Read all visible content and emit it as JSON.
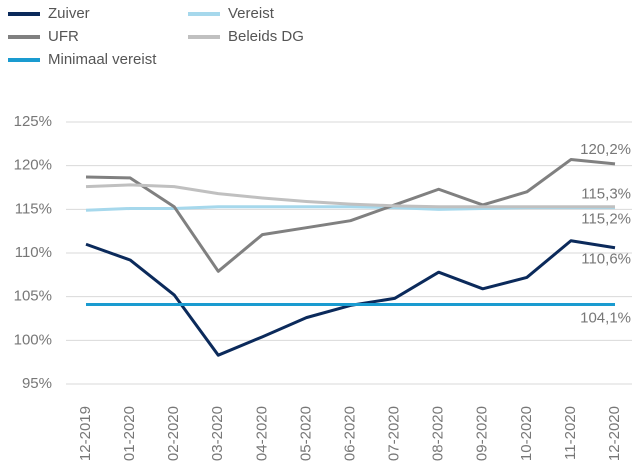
{
  "chart_data": {
    "type": "line",
    "categories": [
      "12-2019",
      "01-2020",
      "02-2020",
      "03-2020",
      "04-2020",
      "05-2020",
      "06-2020",
      "07-2020",
      "08-2020",
      "09-2020",
      "10-2020",
      "11-2020",
      "12-2020"
    ],
    "series": [
      {
        "name": "Zuiver",
        "color": "#0b2a5b",
        "values": [
          111.0,
          109.2,
          105.2,
          98.3,
          100.4,
          102.6,
          104.0,
          104.8,
          107.8,
          105.9,
          107.2,
          111.4,
          110.6
        ],
        "value_labels": [
          null,
          null,
          null,
          null,
          null,
          null,
          null,
          null,
          null,
          null,
          null,
          null,
          "110,6%"
        ]
      },
      {
        "name": "Vereist",
        "color": "#a6d8ec",
        "values": [
          114.9,
          115.1,
          115.1,
          115.3,
          115.3,
          115.3,
          115.3,
          115.2,
          115.0,
          115.1,
          115.2,
          115.2,
          115.2
        ],
        "value_labels": [
          null,
          null,
          null,
          null,
          null,
          null,
          null,
          null,
          null,
          null,
          null,
          null,
          "115,2%"
        ]
      },
      {
        "name": "UFR",
        "color": "#808080",
        "values": [
          118.7,
          118.6,
          115.3,
          107.9,
          112.1,
          112.9,
          113.7,
          115.5,
          117.3,
          115.5,
          117.0,
          120.7,
          120.2
        ],
        "value_labels": [
          null,
          null,
          null,
          null,
          null,
          null,
          null,
          null,
          null,
          null,
          null,
          null,
          "120,2%"
        ]
      },
      {
        "name": "Beleids DG",
        "color": "#c0c0c0",
        "values": [
          117.6,
          117.8,
          117.6,
          116.8,
          116.3,
          115.9,
          115.6,
          115.4,
          115.3,
          115.3,
          115.3,
          115.3,
          115.3
        ],
        "value_labels": [
          null,
          null,
          null,
          null,
          null,
          null,
          null,
          null,
          null,
          null,
          null,
          null,
          "115,3%"
        ]
      },
      {
        "name": "Minimaal vereist",
        "color": "#1a9bd0",
        "values": [
          104.1,
          104.1,
          104.1,
          104.1,
          104.1,
          104.1,
          104.1,
          104.1,
          104.1,
          104.1,
          104.1,
          104.1,
          104.1
        ],
        "value_labels": [
          null,
          null,
          null,
          null,
          null,
          null,
          null,
          null,
          null,
          null,
          null,
          null,
          "104,1%"
        ]
      }
    ],
    "ylim": [
      95,
      125
    ],
    "yticks": [
      {
        "value": 95,
        "label": "95%"
      },
      {
        "value": 100,
        "label": "100%"
      },
      {
        "value": 105,
        "label": "105%"
      },
      {
        "value": 110,
        "label": "110%"
      },
      {
        "value": 115,
        "label": "115%"
      },
      {
        "value": 120,
        "label": "120%"
      },
      {
        "value": 125,
        "label": "125%"
      }
    ],
    "grid": true,
    "legend": "top-left"
  }
}
